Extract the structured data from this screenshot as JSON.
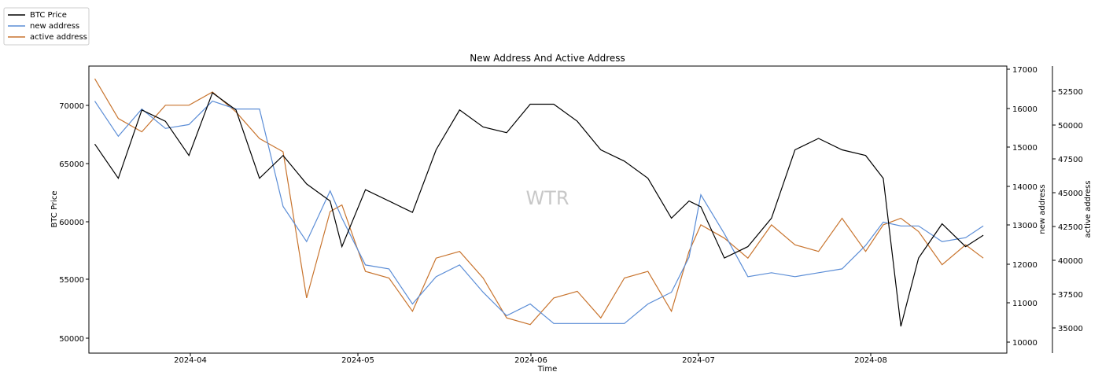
{
  "chart_data": {
    "type": "line",
    "title": "New Address And Active Address",
    "xlabel": "Time",
    "ylabel_left": "BTC Price",
    "ylabel_right1": "new address",
    "ylabel_right2": "active address",
    "watermark": "WTR",
    "x_ticks": [
      "2024-04",
      "2024-05",
      "2024-06",
      "2024-07",
      "2024-08"
    ],
    "y_ticks_left": [
      "50000",
      "55000",
      "60000",
      "65000",
      "70000"
    ],
    "y_ticks_right1": [
      "10000",
      "11000",
      "12000",
      "13000",
      "14000",
      "15000",
      "16000",
      "17000"
    ],
    "y_ticks_right2": [
      "35000",
      "37500",
      "40000",
      "42500",
      "45000",
      "47500",
      "50000",
      "52500"
    ],
    "x_range": [
      "2024-03-20",
      "2024-08-23"
    ],
    "ylim_left": [
      48650,
      73850
    ],
    "ylim_right1": [
      9740,
      17100
    ],
    "ylim_right2": [
      32850,
      54450
    ],
    "grid": false,
    "legend_position": "top-left, outside plot",
    "dates": [
      "2024-03-21",
      "2024-03-25",
      "2024-03-29",
      "2024-04-02",
      "2024-04-06",
      "2024-04-10",
      "2024-04-14",
      "2024-04-18",
      "2024-04-22",
      "2024-04-26",
      "2024-04-30",
      "2024-05-02",
      "2024-05-06",
      "2024-05-10",
      "2024-05-14",
      "2024-05-18",
      "2024-05-22",
      "2024-05-26",
      "2024-05-30",
      "2024-06-03",
      "2024-06-07",
      "2024-06-11",
      "2024-06-15",
      "2024-06-19",
      "2024-06-23",
      "2024-06-27",
      "2024-06-30",
      "2024-07-02",
      "2024-07-06",
      "2024-07-10",
      "2024-07-14",
      "2024-07-18",
      "2024-07-22",
      "2024-07-26",
      "2024-07-30",
      "2024-08-02",
      "2024-08-05",
      "2024-08-08",
      "2024-08-12",
      "2024-08-16",
      "2024-08-19"
    ],
    "series": [
      {
        "name": "BTC Price",
        "color": "#000000",
        "axis": "left",
        "values": [
          67000,
          64000,
          70000,
          69000,
          66000,
          71500,
          70000,
          64000,
          66000,
          63500,
          62000,
          58000,
          63000,
          62000,
          61000,
          66500,
          70000,
          68500,
          68000,
          70500,
          70500,
          69000,
          66500,
          65500,
          64000,
          60500,
          62000,
          61500,
          57000,
          58000,
          60500,
          66500,
          67500,
          66500,
          66000,
          64000,
          51000,
          57000,
          60000,
          58000,
          59000
        ]
      },
      {
        "name": "new address",
        "color": "#5b8dd6",
        "axis": "right1",
        "values": [
          16200,
          15300,
          16000,
          15500,
          15600,
          16200,
          16000,
          16000,
          13500,
          12600,
          13900,
          13200,
          12000,
          11900,
          11000,
          11700,
          12000,
          11300,
          10700,
          11000,
          10500,
          10500,
          10500,
          10500,
          11000,
          11300,
          12200,
          13800,
          12800,
          11700,
          11800,
          11700,
          11800,
          11900,
          12500,
          13100,
          13000,
          13000,
          12600,
          12700,
          13000
        ]
      },
      {
        "name": "active address",
        "color": "#c8742e",
        "axis": "right2",
        "values": [
          53500,
          50500,
          49500,
          51500,
          51500,
          52500,
          51000,
          49000,
          48000,
          37000,
          43500,
          44000,
          39000,
          38500,
          36000,
          40000,
          40500,
          38500,
          35500,
          35000,
          37000,
          37500,
          35500,
          38500,
          39000,
          36000,
          40500,
          42500,
          41500,
          40000,
          42500,
          41000,
          40500,
          43000,
          40500,
          42500,
          43000,
          42000,
          39500,
          41000,
          40000
        ]
      }
    ]
  }
}
